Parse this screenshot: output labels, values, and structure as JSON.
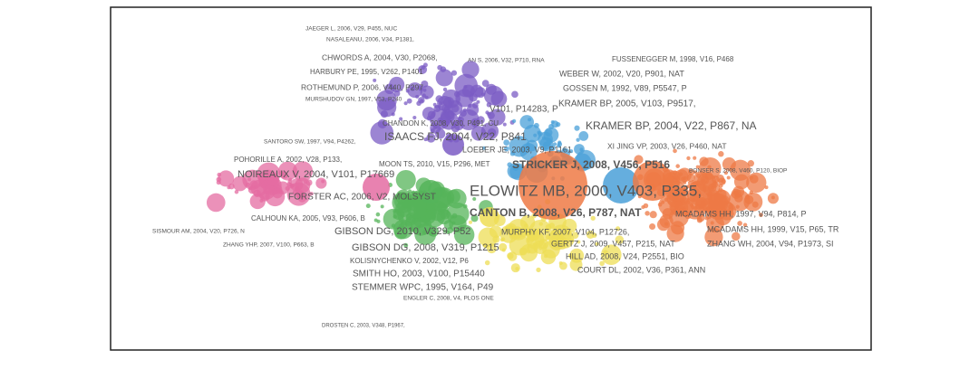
{
  "labels": [
    "JAEGER L, 2006, V29, P455, NUC",
    "NASALEANU, 2006, V34, P1381,",
    "CHWORDS A, 2004, V30, P2068,",
    "HARBURY PE, 1995, V262, P1401",
    "ROTHEMUND P, 2006, V440, P297",
    "MURSHUDOV GN, 1997, V53, P240",
    "AN S, 2006, V32, P710, RNA",
    "FUSSENEGGER M, 1998, V16, P468",
    "WEBER W, 2002, V20, P901, NAT",
    "GOSSEN M, 1992, V89, P5547, P",
    "KRAMER BP, 2005, V103, P9517,",
    "KRAMER BP, 2004, V22, P867, NA",
    "CHANDON K, 2008, V30, P491, CU",
    "ISAACS FJ, 2004, V22, P841",
    "V101, P14283, P",
    "SANTORO SW, 1997, V94, P4262,",
    "LOEBER JE, 2003, V9, P1161",
    "XI JING VP, 2003, V26, P460, NAT",
    "POHORILLE A, 2002, V28, P133,",
    "MOON TS, 2010, V15, P296, MET",
    "STRICKER J, 2008, V456, P516",
    "BONSER S, 2008, V460, P120, BIOP",
    "NOIREAUX V, 2004, V101, P17669",
    "ELOWITZ MB, 2000, V403, P335,",
    "FORSTER AC, 2006, V2, MOLSYST",
    "CANTON B, 2008, V26, P787, NAT",
    "MCADAMS HH, 1997, V94, P814, P",
    "CALHOUN KA, 2005, V93, P606, B",
    "GIBSON DG, 2010, V329, P52",
    "MURPHY KF, 2007, V104, P12726,",
    "MCADAMS HH, 1999, V15, P65, TR",
    "SISMOUR AM, 2004, V20, P726, N",
    "ZHANG WH, 2004, V94, P1973, SI",
    "GERTZ J, 2009, V457, P215, NAT",
    "GIBSON DG, 2008, V319, P1215",
    "ZHANG YHP, 2007, V100, P663, B",
    "KOLISNYCHENKO V, 2002, V12, P6",
    "HILL AD, 2008, V24, P2551, BIO",
    "SMITH HO, 2003, V100, P15440",
    "COURT DL, 2002, V36, P361, ANN",
    "STEMMER WPC, 1995, V164, P49",
    "ENGLER C, 2008, V4, PLOS ONE",
    "DROSTEN C, 2003, V348, P1967,"
  ]
}
